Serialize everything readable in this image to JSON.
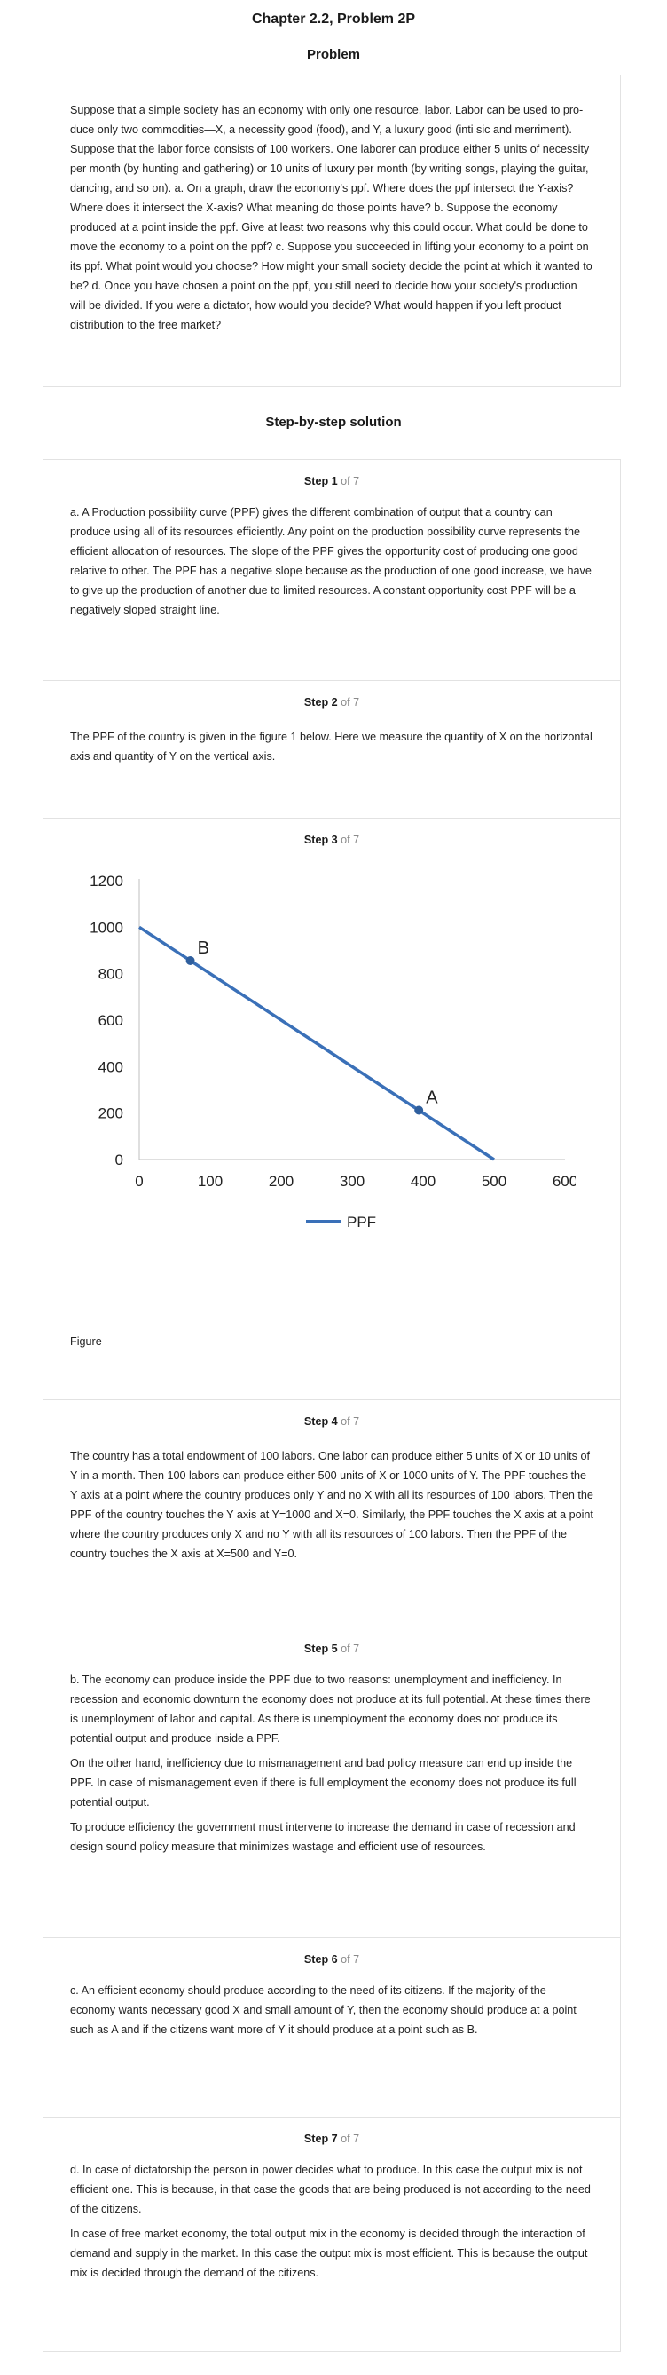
{
  "header": {
    "chapter_title": "Chapter 2.2, Problem 2P",
    "problem_heading": "Problem",
    "solution_heading": "Step-by-step solution"
  },
  "problem": {
    "text": "Suppose that a simple society has an economy with only one resource, labor. Labor can be used to pro-duce only two commodities—X, a necessity good (food), and Y, a luxury good (inti sic and merriment). Suppose that the labor force consists of 100 workers. One laborer can produce either 5 units of necessity per month (by hunting and gathering) or 10 units of luxury per month (by writing songs, playing the guitar, dancing, and so on). a. On a graph, draw the economy's ppf. Where does the ppf intersect the Y-axis? Where does it intersect the X-axis? What meaning do those points have? b. Suppose the economy produced at a point inside the ppf. Give at least two reasons why this could occur. What could be done to move the economy to a point on the ppf? c. Suppose you succeeded in lifting your economy to a point on its ppf. What point would you choose? How might your small society decide the point at which it wanted to be? d. Once you have chosen a point on the ppf, you still need to decide how your society's production will be divided. If you were a dictator, how would you decide? What would happen if you left product distribution to the free market?"
  },
  "steps": [
    {
      "label": "Step 1",
      "of": "of 7",
      "paragraphs": [
        "a. A Production possibility curve (PPF) gives the different combination of output that a country can produce using all of its resources efficiently. Any point on the production possibility curve represents the efficient allocation of resources. The slope of the PPF gives the opportunity cost of producing one good relative to other. The PPF has a negative slope because as the production of one good increase, we have to give up the production of another due to limited resources. A constant opportunity cost PPF will be a negatively sloped straight line."
      ]
    },
    {
      "label": "Step 2",
      "of": "of 7",
      "paragraphs": [
        "The PPF of the country is given in the figure 1 below. Here we measure the quantity of X on the horizontal axis and quantity of Y on the vertical axis."
      ]
    },
    {
      "label": "Step 3",
      "of": "of 7",
      "caption": "Figure"
    },
    {
      "label": "Step 4",
      "of": "of 7",
      "paragraphs": [
        "The country has a total endowment of 100 labors. One labor can produce either 5 units of X or 10 units of Y in a month. Then 100 labors can produce either 500 units of X or 1000 units of Y. The PPF touches the Y axis at a point where the country produces only Y and no X with all its resources of 100 labors. Then the PPF of the country touches the Y axis at Y=1000 and X=0. Similarly, the PPF touches the X axis at a point where the country produces only X and no Y with all its resources of 100 labors. Then the PPF of the country touches the X axis at X=500 and Y=0."
      ]
    },
    {
      "label": "Step 5",
      "of": "of 7",
      "paragraphs": [
        "b. The economy can produce inside the PPF due to two reasons: unemployment and inefficiency. In recession and economic downturn the economy does not produce at its full potential. At these times there is unemployment of labor and capital. As there is unemployment the economy does not produce its potential output and produce inside a PPF.",
        "On the other hand, inefficiency due to mismanagement and bad policy measure can end up inside the PPF. In case of mismanagement even if there is full employment the economy does not produce its full potential output.",
        "To produce efficiency the government must intervene to increase the demand in case of recession and design sound policy measure that minimizes wastage and efficient use of resources."
      ]
    },
    {
      "label": "Step 6",
      "of": "of 7",
      "paragraphs": [
        "c. An efficient economy should produce according to the need of its citizens. If the majority of the economy wants necessary good X and small amount of Y, then the economy should produce at a point such as A and if the citizens want more of Y it should produce at a point such as B."
      ]
    },
    {
      "label": "Step 7",
      "of": "of 7",
      "paragraphs": [
        "d. In case of dictatorship the person in power decides what to produce. In this case the output mix is not efficient one. This is because, in that case the goods that are being produced is not according to the need of the citizens.",
        "In case of free market economy, the total output mix in the economy is decided through the interaction of demand and supply in the market. In this case the output mix is most efficient. This is because the output mix is decided through the demand of the citizens."
      ]
    }
  ],
  "chart_data": {
    "type": "line",
    "title": "",
    "xlabel": "",
    "ylabel": "",
    "xlim": [
      0,
      600
    ],
    "ylim": [
      0,
      1200
    ],
    "xticks": [
      "0",
      "100",
      "200",
      "300",
      "400",
      "500",
      "600"
    ],
    "yticks": [
      "0",
      "200",
      "400",
      "600",
      "800",
      "1000",
      "1200"
    ],
    "grid": false,
    "legend_position": "bottom",
    "series": [
      {
        "name": "PPF",
        "color": "#3a70b8",
        "x": [
          0,
          500
        ],
        "y": [
          1000,
          0
        ]
      }
    ],
    "points": [
      {
        "label": "B",
        "x": 72,
        "y": 856
      },
      {
        "label": "A",
        "x": 394,
        "y": 212
      }
    ]
  }
}
